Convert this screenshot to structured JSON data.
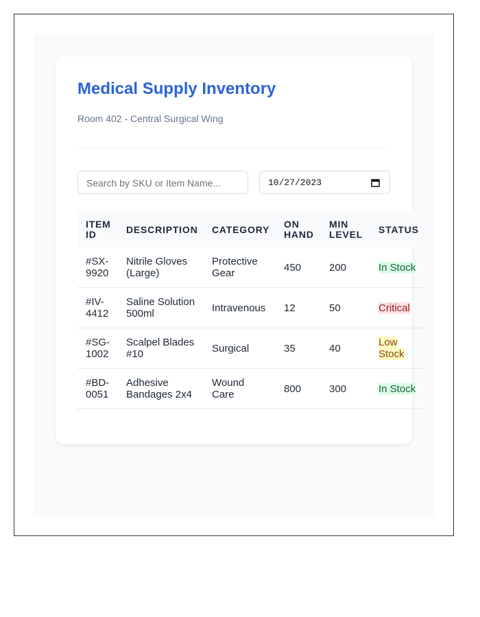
{
  "header": {
    "title": "Medical Supply Inventory",
    "subtitle": "Room 402 - Central Surgical Wing"
  },
  "filters": {
    "search_placeholder": "Search by SKU or Item Name...",
    "date": "10/27/2023"
  },
  "table": {
    "columns": [
      "ITEM ID",
      "DESCRIPTION",
      "CATEGORY",
      "ON HAND",
      "MIN LEVEL",
      "STATUS"
    ],
    "rows": [
      [
        "#SX-9920",
        "Nitrile Gloves (Large)",
        "Protective Gear",
        "450",
        "200",
        "In Stock"
      ],
      [
        "#IV-4412",
        "Saline Solution 500ml",
        "Intravenous",
        "12",
        "50",
        "Critical"
      ],
      [
        "#SG-1002",
        "Scalpel Blades #10",
        "Surgical",
        "35",
        "40",
        "Low Stock"
      ],
      [
        "#BD-0051",
        "Adhesive Bandages 2x4",
        "Wound Care",
        "800",
        "300",
        "In Stock"
      ]
    ],
    "status_colors": [
      {
        "bg": "#dcfce7",
        "fg": "#166534"
      },
      {
        "bg": "#fee2e2",
        "fg": "#991b1b"
      },
      {
        "bg": "#fef9c3",
        "fg": "#854d0e"
      },
      {
        "bg": "#dcfce7",
        "fg": "#166534"
      }
    ]
  }
}
